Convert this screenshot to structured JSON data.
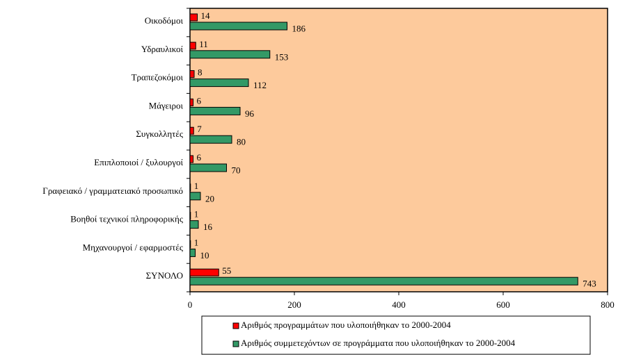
{
  "chart_data": {
    "type": "bar",
    "orientation": "horizontal",
    "categories": [
      "Οικοδόμοι",
      "Υδραυλικοί",
      "Τραπεζοκόμοι",
      "Μάγειροι",
      "Συγκολλητές",
      "Επιπλοποιοί / ξυλουργοί",
      "Γραφειακό / γραμματειακό προσωπικό",
      "Βοηθοί τεχνικοί πληροφορικής",
      "Μηχανουργοί / εφαρμοστές",
      "ΣΥΝΟΛΟ"
    ],
    "series": [
      {
        "name": "Αριθμός προγραμμάτων που υλοποιήθηκαν το 2000-2004",
        "color": "#ff0000",
        "values": [
          14,
          11,
          8,
          6,
          7,
          6,
          1,
          1,
          1,
          55
        ]
      },
      {
        "name": "Αριθμός συμμετεχόντων σε προγράμματα που υλοποιήθηκαν το 2000-2004",
        "color": "#339966",
        "values": [
          186,
          153,
          112,
          96,
          80,
          70,
          20,
          16,
          10,
          743
        ]
      }
    ],
    "xlim": [
      0,
      800
    ],
    "xticks": [
      0,
      200,
      400,
      600,
      800
    ],
    "background": "#fdca9c",
    "legend": "bottom"
  }
}
